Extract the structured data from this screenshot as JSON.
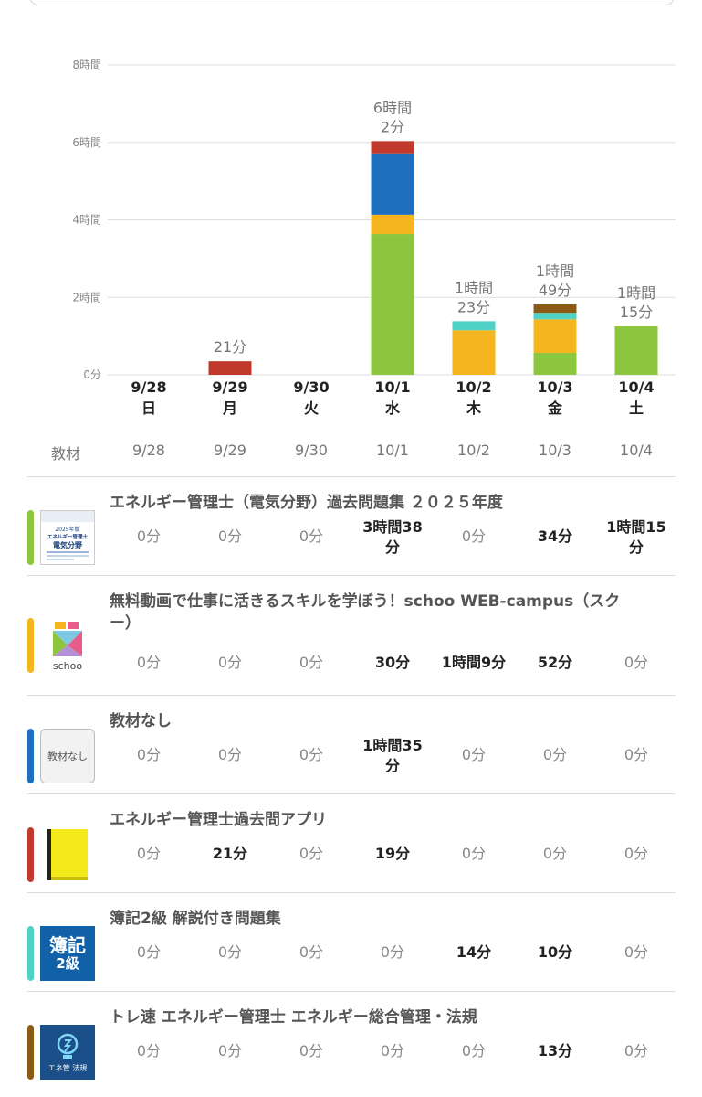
{
  "chart_data": {
    "type": "bar",
    "stacked": true,
    "categories": [
      "9/28 日",
      "9/29 月",
      "9/30 火",
      "10/1 水",
      "10/2 木",
      "10/3 金",
      "10/4 土"
    ],
    "x_dates": [
      "9/28",
      "9/29",
      "9/30",
      "10/1",
      "10/2",
      "10/3",
      "10/4"
    ],
    "x_days": [
      "日",
      "月",
      "火",
      "水",
      "木",
      "金",
      "土"
    ],
    "yticks": [
      {
        "value": 0,
        "label": "0分"
      },
      {
        "value": 120,
        "label": "2時間"
      },
      {
        "value": 240,
        "label": "4時間"
      },
      {
        "value": 360,
        "label": "6時間"
      },
      {
        "value": 480,
        "label": "8時間"
      }
    ],
    "ylim": [
      0,
      480
    ],
    "y_unit": "minutes",
    "grid": true,
    "series": [
      {
        "color": "#8cc63f",
        "values": [
          0,
          0,
          0,
          218,
          0,
          34,
          75
        ]
      },
      {
        "color": "#f5b51e",
        "values": [
          0,
          0,
          0,
          30,
          69,
          52,
          0
        ]
      },
      {
        "color": "#1f6fbf",
        "values": [
          0,
          0,
          0,
          95,
          0,
          0,
          0
        ]
      },
      {
        "color": "#c0392b",
        "values": [
          0,
          21,
          0,
          19,
          0,
          0,
          0
        ]
      },
      {
        "color": "#4fd1c5",
        "values": [
          0,
          0,
          0,
          0,
          14,
          10,
          0
        ]
      },
      {
        "color": "#8b5a14",
        "values": [
          0,
          0,
          0,
          0,
          0,
          13,
          0
        ]
      }
    ],
    "total_labels": [
      [],
      [
        "21分"
      ],
      [],
      [
        "6時間",
        "2分"
      ],
      [
        "1時間",
        "23分"
      ],
      [
        "1時間",
        "49分"
      ],
      [
        "1時間",
        "15分"
      ]
    ]
  },
  "table": {
    "header_label": "教材",
    "dates": [
      "9/28",
      "9/29",
      "9/30",
      "10/1",
      "10/2",
      "10/3",
      "10/4"
    ],
    "rows": [
      {
        "title": "エネルギー管理士（電気分野）過去問題集 ２０２５年度",
        "color": "#8cc63f",
        "thumb": "book-cover",
        "thumb_text": [
          "2025年版",
          "エネルギー管理士",
          "電気分野"
        ],
        "cells": [
          "0分",
          "0分",
          "0分",
          "3時間38分",
          "0分",
          "34分",
          "1時間15分"
        ],
        "cell_lines": [
          [
            "0分"
          ],
          [
            "0分"
          ],
          [
            "0分"
          ],
          [
            "3時間38",
            "分"
          ],
          [
            "0分"
          ],
          [
            "34分"
          ],
          [
            "1時間15",
            "分"
          ]
        ],
        "strong": [
          false,
          false,
          false,
          true,
          false,
          true,
          true
        ]
      },
      {
        "title": "無料動画で仕事に活きるスキルを学ぼう！schoo WEB-campus（スクー）",
        "title_lines": [
          "無料動画で仕事に活きるスキルを学ぼう！schoo WEB-campus（スク",
          "ー）"
        ],
        "color": "#f5b51e",
        "thumb": "schoo-logo",
        "thumb_text": [
          "schoo"
        ],
        "cell_lines": [
          [
            "0分"
          ],
          [
            "0分"
          ],
          [
            "0分"
          ],
          [
            "30分"
          ],
          [
            "1時間9分"
          ],
          [
            "52分"
          ],
          [
            "0分"
          ]
        ],
        "strong": [
          false,
          false,
          false,
          true,
          true,
          true,
          false
        ]
      },
      {
        "title": "教材なし",
        "color": "#1f6fbf",
        "thumb": "no-material",
        "thumb_text": [
          "教材なし"
        ],
        "cell_lines": [
          [
            "0分"
          ],
          [
            "0分"
          ],
          [
            "0分"
          ],
          [
            "1時間35",
            "分"
          ],
          [
            "0分"
          ],
          [
            "0分"
          ],
          [
            "0分"
          ]
        ],
        "strong": [
          false,
          false,
          false,
          true,
          false,
          false,
          false
        ]
      },
      {
        "title": "エネルギー管理士過去問アプリ",
        "color": "#c0392b",
        "thumb": "yellow-book",
        "thumb_text": [],
        "cell_lines": [
          [
            "0分"
          ],
          [
            "21分"
          ],
          [
            "0分"
          ],
          [
            "19分"
          ],
          [
            "0分"
          ],
          [
            "0分"
          ],
          [
            "0分"
          ]
        ],
        "strong": [
          false,
          true,
          false,
          true,
          false,
          false,
          false
        ]
      },
      {
        "title": "簿記2級 解説付き問題集",
        "color": "#4fd1c5",
        "thumb": "boki-icon",
        "thumb_text": [
          "簿記",
          "2級"
        ],
        "cell_lines": [
          [
            "0分"
          ],
          [
            "0分"
          ],
          [
            "0分"
          ],
          [
            "0分"
          ],
          [
            "14分"
          ],
          [
            "10分"
          ],
          [
            "0分"
          ]
        ],
        "strong": [
          false,
          false,
          false,
          false,
          true,
          true,
          false
        ]
      },
      {
        "title": "トレ速 エネルギー管理士 エネルギー総合管理・法規",
        "color": "#8b5a14",
        "thumb": "lightbulb-icon",
        "thumb_text": [
          "エネ管 法規"
        ],
        "cell_lines": [
          [
            "0分"
          ],
          [
            "0分"
          ],
          [
            "0分"
          ],
          [
            "0分"
          ],
          [
            "0分"
          ],
          [
            "13分"
          ],
          [
            "0分"
          ]
        ],
        "strong": [
          false,
          false,
          false,
          false,
          false,
          true,
          false
        ]
      }
    ]
  }
}
